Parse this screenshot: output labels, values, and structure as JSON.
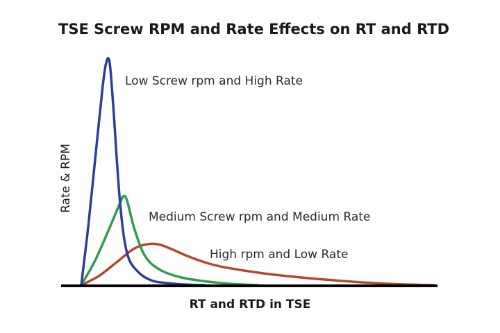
{
  "chart_data": {
    "type": "line",
    "title": "TSE Screw RPM and Rate Effects on RT and RTD",
    "xlabel": "RT and RTD in TSE",
    "ylabel": "Rate & RPM",
    "xlim": [
      0,
      1
    ],
    "ylim": [
      0,
      1
    ],
    "grid": false,
    "legend": "inline labels",
    "series": [
      {
        "name": "Low Screw rpm and High Rate",
        "color": "#2c3e9e",
        "x": [
          0,
          0.02,
          0.04,
          0.06,
          0.07,
          0.08,
          0.09,
          0.11,
          0.13,
          0.16,
          0.2,
          0.25,
          0.3,
          0.35
        ],
        "y": [
          0,
          0.26,
          0.56,
          0.86,
          0.97,
          0.98,
          0.8,
          0.36,
          0.14,
          0.06,
          0.02,
          0.008,
          0.002,
          0
        ]
      },
      {
        "name": "Medium Screw rpm and Medium Rate",
        "color": "#2e9e4a",
        "x": [
          0,
          0.04,
          0.08,
          0.11,
          0.12,
          0.13,
          0.15,
          0.18,
          0.22,
          0.28,
          0.35,
          0.42,
          0.5
        ],
        "y": [
          0,
          0.11,
          0.25,
          0.36,
          0.39,
          0.37,
          0.25,
          0.13,
          0.07,
          0.035,
          0.017,
          0.006,
          0
        ]
      },
      {
        "name": "High rpm and Low Rate",
        "color": "#b5482a",
        "x": [
          0,
          0.05,
          0.1,
          0.15,
          0.19,
          0.22,
          0.25,
          0.3,
          0.35,
          0.4,
          0.5,
          0.6,
          0.7,
          0.8,
          0.9,
          1.0
        ],
        "y": [
          0,
          0.04,
          0.1,
          0.16,
          0.18,
          0.178,
          0.162,
          0.128,
          0.1,
          0.08,
          0.055,
          0.037,
          0.023,
          0.012,
          0.004,
          0
        ]
      }
    ]
  }
}
